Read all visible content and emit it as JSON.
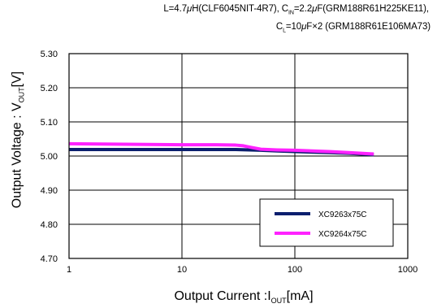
{
  "conditions": {
    "line1": "L=4.7μH(CLF6045NIT-4R7),  C IN=2.2μF(GRM188R61H225KE11),",
    "line1_parts": {
      "a": "L=4.7",
      "mu1": "μ",
      "b": "H(CLF6045NIT-4R7),  C",
      "sub": "IN",
      "c": "=2.2",
      "mu2": "μ",
      "d": "F(GRM188R61H225KE11),"
    },
    "line2_parts": {
      "a": "C",
      "sub": "L",
      "b": "=10",
      "mu": "μ",
      "c": "F×2 (GRM188R61E106MA73)"
    }
  },
  "axis": {
    "ylabel_parts": {
      "a": "Output Voltage : V",
      "sub": "OUT",
      "b": "[V]"
    },
    "xlabel_parts": {
      "a": "Output Current :I",
      "sub": "OUT",
      "b": "[mA]"
    }
  },
  "chart_data": {
    "type": "line",
    "x_scale": "log",
    "xlim": [
      1,
      1000
    ],
    "ylim": [
      4.7,
      5.3
    ],
    "x_ticks": [
      "1",
      "10",
      "100",
      "1000"
    ],
    "y_ticks": [
      "5.30",
      "5.20",
      "5.10",
      "5.00",
      "4.90",
      "4.80",
      "4.70"
    ],
    "grid": true,
    "legend_position": "bottom-right",
    "series": [
      {
        "name": "XC9263x75C",
        "color": "#0b1f6e",
        "x": [
          1,
          2,
          5,
          10,
          20,
          30,
          40,
          50,
          70,
          100,
          200,
          300,
          500
        ],
        "y": [
          5.019,
          5.019,
          5.019,
          5.019,
          5.019,
          5.019,
          5.018,
          5.017,
          5.015,
          5.013,
          5.01,
          5.008,
          5.004
        ]
      },
      {
        "name": "XC9264x75C",
        "color": "#ff22ff",
        "x": [
          1,
          2,
          5,
          10,
          20,
          30,
          35,
          40,
          50,
          70,
          100,
          200,
          300,
          500
        ],
        "y": [
          5.036,
          5.035,
          5.034,
          5.033,
          5.033,
          5.032,
          5.03,
          5.026,
          5.02,
          5.018,
          5.017,
          5.013,
          5.01,
          5.006
        ]
      }
    ]
  }
}
